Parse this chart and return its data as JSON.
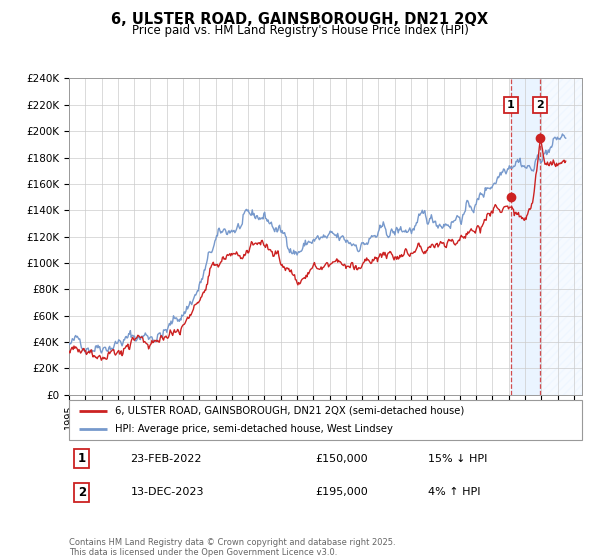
{
  "title": "6, ULSTER ROAD, GAINSBOROUGH, DN21 2QX",
  "subtitle": "Price paid vs. HM Land Registry's House Price Index (HPI)",
  "ylim": [
    0,
    240000
  ],
  "xlim_start": 1995.0,
  "xlim_end": 2026.5,
  "yticks": [
    0,
    20000,
    40000,
    60000,
    80000,
    100000,
    120000,
    140000,
    160000,
    180000,
    200000,
    220000,
    240000
  ],
  "ytick_labels": [
    "£0",
    "£20K",
    "£40K",
    "£60K",
    "£80K",
    "£100K",
    "£120K",
    "£140K",
    "£160K",
    "£180K",
    "£200K",
    "£220K",
    "£240K"
  ],
  "hpi_color": "#7799cc",
  "price_color": "#cc2222",
  "sale1_x": 2022.12,
  "sale1_y": 150000,
  "sale2_x": 2023.95,
  "sale2_y": 195000,
  "shade_color": "#ddeeff",
  "hatch_color": "#ccccdd",
  "legend_price_label": "6, ULSTER ROAD, GAINSBOROUGH, DN21 2QX (semi-detached house)",
  "legend_hpi_label": "HPI: Average price, semi-detached house, West Lindsey",
  "annotation1_date": "23-FEB-2022",
  "annotation1_price": "£150,000",
  "annotation1_hpi": "15% ↓ HPI",
  "annotation2_date": "13-DEC-2023",
  "annotation2_price": "£195,000",
  "annotation2_hpi": "4% ↑ HPI",
  "footer": "Contains HM Land Registry data © Crown copyright and database right 2025.\nThis data is licensed under the Open Government Licence v3.0.",
  "background_color": "#ffffff",
  "grid_color": "#cccccc"
}
